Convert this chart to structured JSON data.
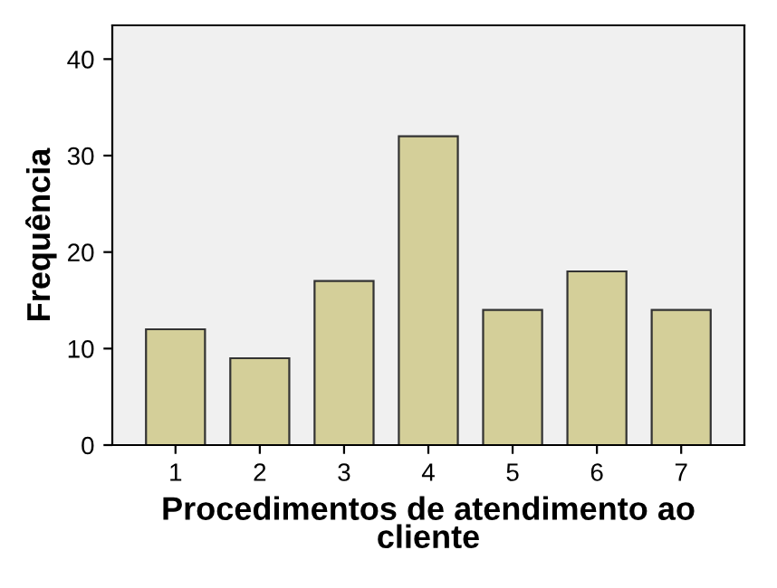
{
  "chart_data": {
    "type": "bar",
    "xlabel": "Procedimentos de atendimento ao\ncliente",
    "ylabel": "Frequência",
    "categories": [
      "1",
      "2",
      "3",
      "4",
      "5",
      "6",
      "7"
    ],
    "values": [
      12,
      9,
      17,
      32,
      14,
      18,
      14
    ],
    "color": "#d4cf99",
    "ylim": [
      0,
      43.5
    ],
    "yticks": [
      0,
      10,
      20,
      30,
      40
    ],
    "grid": false
  }
}
